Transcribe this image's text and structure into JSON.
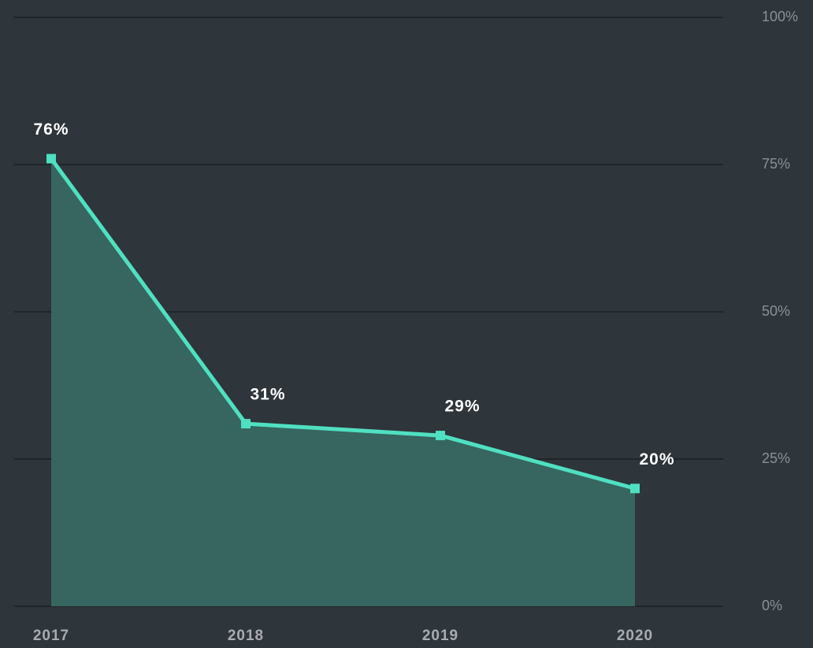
{
  "chart_data": {
    "type": "area",
    "categories": [
      "2017",
      "2018",
      "2019",
      "2020"
    ],
    "series": [
      {
        "color": "#4fe0c1",
        "values": [
          76,
          31,
          29,
          20
        ],
        "value_labels": [
          "76%",
          "31%",
          "29%",
          "20%"
        ]
      }
    ],
    "area_color": "#36665f",
    "ylim": [
      0,
      100
    ],
    "yticks": [
      {
        "value": 0,
        "label": "0%"
      },
      {
        "value": 25,
        "label": "25%"
      },
      {
        "value": 50,
        "label": "50%"
      },
      {
        "value": 75,
        "label": "75%"
      },
      {
        "value": 100,
        "label": "100%"
      }
    ],
    "grid": true
  }
}
